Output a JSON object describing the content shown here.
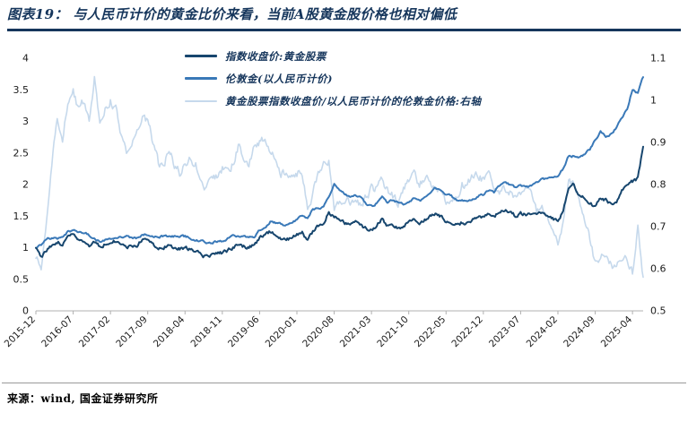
{
  "page": {
    "title": "图表19：  与人民币计价的黄金比价来看，当前A股黄金股价格也相对偏低",
    "source": "来源：wind, 国金证券研究所"
  },
  "colors": {
    "title_navy": "#16365c",
    "series_dark_blue": "#17466e",
    "series_medium_blue": "#3a79b8",
    "series_light_blue": "#c6d9ec",
    "axis_line": "#b0b0b0",
    "tick_text": "#1a1a1a"
  },
  "chart_data": {
    "type": "line",
    "title": "与人民币计价的黄金比价来看，当前A股黄金股价格也相对偏低",
    "x_unit": "month",
    "x_start": "2015-12",
    "x_end": "2025-06",
    "grid": false,
    "legend_position": "top-inside",
    "x_tick_labels": [
      "2015-12",
      "2016-07",
      "2017-02",
      "2017-09",
      "2018-04",
      "2018-11",
      "2019-06",
      "2020-01",
      "2020-08",
      "2021-03",
      "2021-10",
      "2022-05",
      "2022-12",
      "2023-07",
      "2024-02",
      "2024-09",
      "2025-04"
    ],
    "x_tick_every_n_points": 7,
    "left_axis": {
      "min": 0,
      "max": 4,
      "step": 0.5
    },
    "right_axis": {
      "min": 0.5,
      "max": 1.1,
      "step": 0.1
    },
    "left_ticks": [
      "4",
      "3.5",
      "3",
      "2.5",
      "2",
      "1.5",
      "1",
      "0.5",
      "0"
    ],
    "right_ticks": [
      "1.1",
      "1",
      "0.9",
      "0.8",
      "0.7",
      "0.6",
      "0.5"
    ],
    "series": [
      {
        "key": "gold-stock-index",
        "name": "指数收盘价:黄金股票",
        "axis": "left",
        "color": "#17466e",
        "width": 2,
        "noise": 0.05,
        "values": [
          1.0,
          0.85,
          0.95,
          1.05,
          1.1,
          1.05,
          1.15,
          1.2,
          1.15,
          1.12,
          1.05,
          1.1,
          1.0,
          1.05,
          1.1,
          1.1,
          1.05,
          1.0,
          1.02,
          1.05,
          1.15,
          1.12,
          1.05,
          1.0,
          1.0,
          1.05,
          1.0,
          0.98,
          1.0,
          0.98,
          0.95,
          0.88,
          0.85,
          0.88,
          0.9,
          0.92,
          0.95,
          1.0,
          1.05,
          1.02,
          1.0,
          1.05,
          1.15,
          1.18,
          1.25,
          1.2,
          1.15,
          1.12,
          1.15,
          1.2,
          1.25,
          1.1,
          1.25,
          1.35,
          1.4,
          1.55,
          1.5,
          1.45,
          1.4,
          1.35,
          1.4,
          1.35,
          1.3,
          1.3,
          1.35,
          1.45,
          1.35,
          1.35,
          1.3,
          1.35,
          1.4,
          1.45,
          1.4,
          1.45,
          1.5,
          1.55,
          1.5,
          1.4,
          1.4,
          1.35,
          1.4,
          1.4,
          1.45,
          1.5,
          1.5,
          1.55,
          1.5,
          1.55,
          1.6,
          1.55,
          1.5,
          1.55,
          1.52,
          1.55,
          1.5,
          1.55,
          1.5,
          1.45,
          1.4,
          1.6,
          1.95,
          2.0,
          1.85,
          1.8,
          1.7,
          1.65,
          1.8,
          1.75,
          1.7,
          1.75,
          1.9,
          2.0,
          2.05,
          2.1,
          2.6
        ]
      },
      {
        "key": "london-gold-rmb",
        "name": "伦敦金(以人民币计价)",
        "axis": "left",
        "color": "#3a79b8",
        "width": 2,
        "noise": 0.03,
        "values": [
          1.0,
          1.05,
          1.15,
          1.15,
          1.15,
          1.18,
          1.25,
          1.28,
          1.25,
          1.25,
          1.2,
          1.15,
          1.1,
          1.12,
          1.15,
          1.15,
          1.18,
          1.18,
          1.15,
          1.15,
          1.2,
          1.2,
          1.18,
          1.18,
          1.18,
          1.18,
          1.18,
          1.18,
          1.18,
          1.15,
          1.12,
          1.1,
          1.08,
          1.08,
          1.1,
          1.1,
          1.15,
          1.18,
          1.18,
          1.18,
          1.18,
          1.18,
          1.28,
          1.3,
          1.42,
          1.4,
          1.38,
          1.35,
          1.38,
          1.45,
          1.5,
          1.48,
          1.6,
          1.62,
          1.65,
          1.8,
          2.0,
          1.9,
          1.85,
          1.78,
          1.82,
          1.8,
          1.7,
          1.65,
          1.7,
          1.8,
          1.72,
          1.75,
          1.72,
          1.7,
          1.72,
          1.78,
          1.75,
          1.78,
          1.85,
          1.95,
          1.92,
          1.85,
          1.82,
          1.75,
          1.75,
          1.75,
          1.78,
          1.82,
          1.85,
          1.9,
          1.88,
          1.98,
          2.02,
          2.0,
          1.95,
          1.98,
          1.95,
          1.98,
          2.02,
          2.08,
          2.1,
          2.1,
          2.12,
          2.25,
          2.45,
          2.45,
          2.42,
          2.48,
          2.55,
          2.7,
          2.85,
          2.75,
          2.8,
          2.9,
          3.05,
          3.2,
          3.5,
          3.45,
          3.7
        ]
      },
      {
        "key": "ratio-right-axis",
        "name": "黄金股票指数收盘价/以人民币计价的伦敦金价格:右轴",
        "axis": "right",
        "color": "#c6d9ec",
        "width": 1.6,
        "noise": 0.018,
        "values": [
          0.63,
          0.6,
          0.72,
          0.85,
          0.95,
          0.9,
          1.0,
          1.02,
          0.98,
          1.0,
          0.95,
          1.05,
          0.95,
          0.98,
          1.0,
          0.98,
          0.92,
          0.88,
          0.9,
          0.92,
          0.97,
          0.95,
          0.9,
          0.85,
          0.85,
          0.88,
          0.85,
          0.83,
          0.85,
          0.86,
          0.85,
          0.8,
          0.79,
          0.81,
          0.82,
          0.84,
          0.83,
          0.85,
          0.89,
          0.87,
          0.85,
          0.89,
          0.9,
          0.91,
          0.88,
          0.86,
          0.83,
          0.83,
          0.83,
          0.83,
          0.83,
          0.75,
          0.78,
          0.83,
          0.85,
          0.86,
          0.75,
          0.76,
          0.76,
          0.76,
          0.77,
          0.75,
          0.77,
          0.79,
          0.79,
          0.81,
          0.79,
          0.77,
          0.76,
          0.79,
          0.81,
          0.82,
          0.8,
          0.82,
          0.81,
          0.8,
          0.78,
          0.76,
          0.77,
          0.77,
          0.8,
          0.8,
          0.82,
          0.82,
          0.81,
          0.82,
          0.8,
          0.78,
          0.79,
          0.78,
          0.77,
          0.78,
          0.78,
          0.78,
          0.74,
          0.74,
          0.71,
          0.69,
          0.66,
          0.71,
          0.8,
          0.81,
          0.76,
          0.72,
          0.67,
          0.61,
          0.63,
          0.64,
          0.61,
          0.6,
          0.62,
          0.62,
          0.59,
          0.7,
          0.58
        ]
      }
    ]
  }
}
